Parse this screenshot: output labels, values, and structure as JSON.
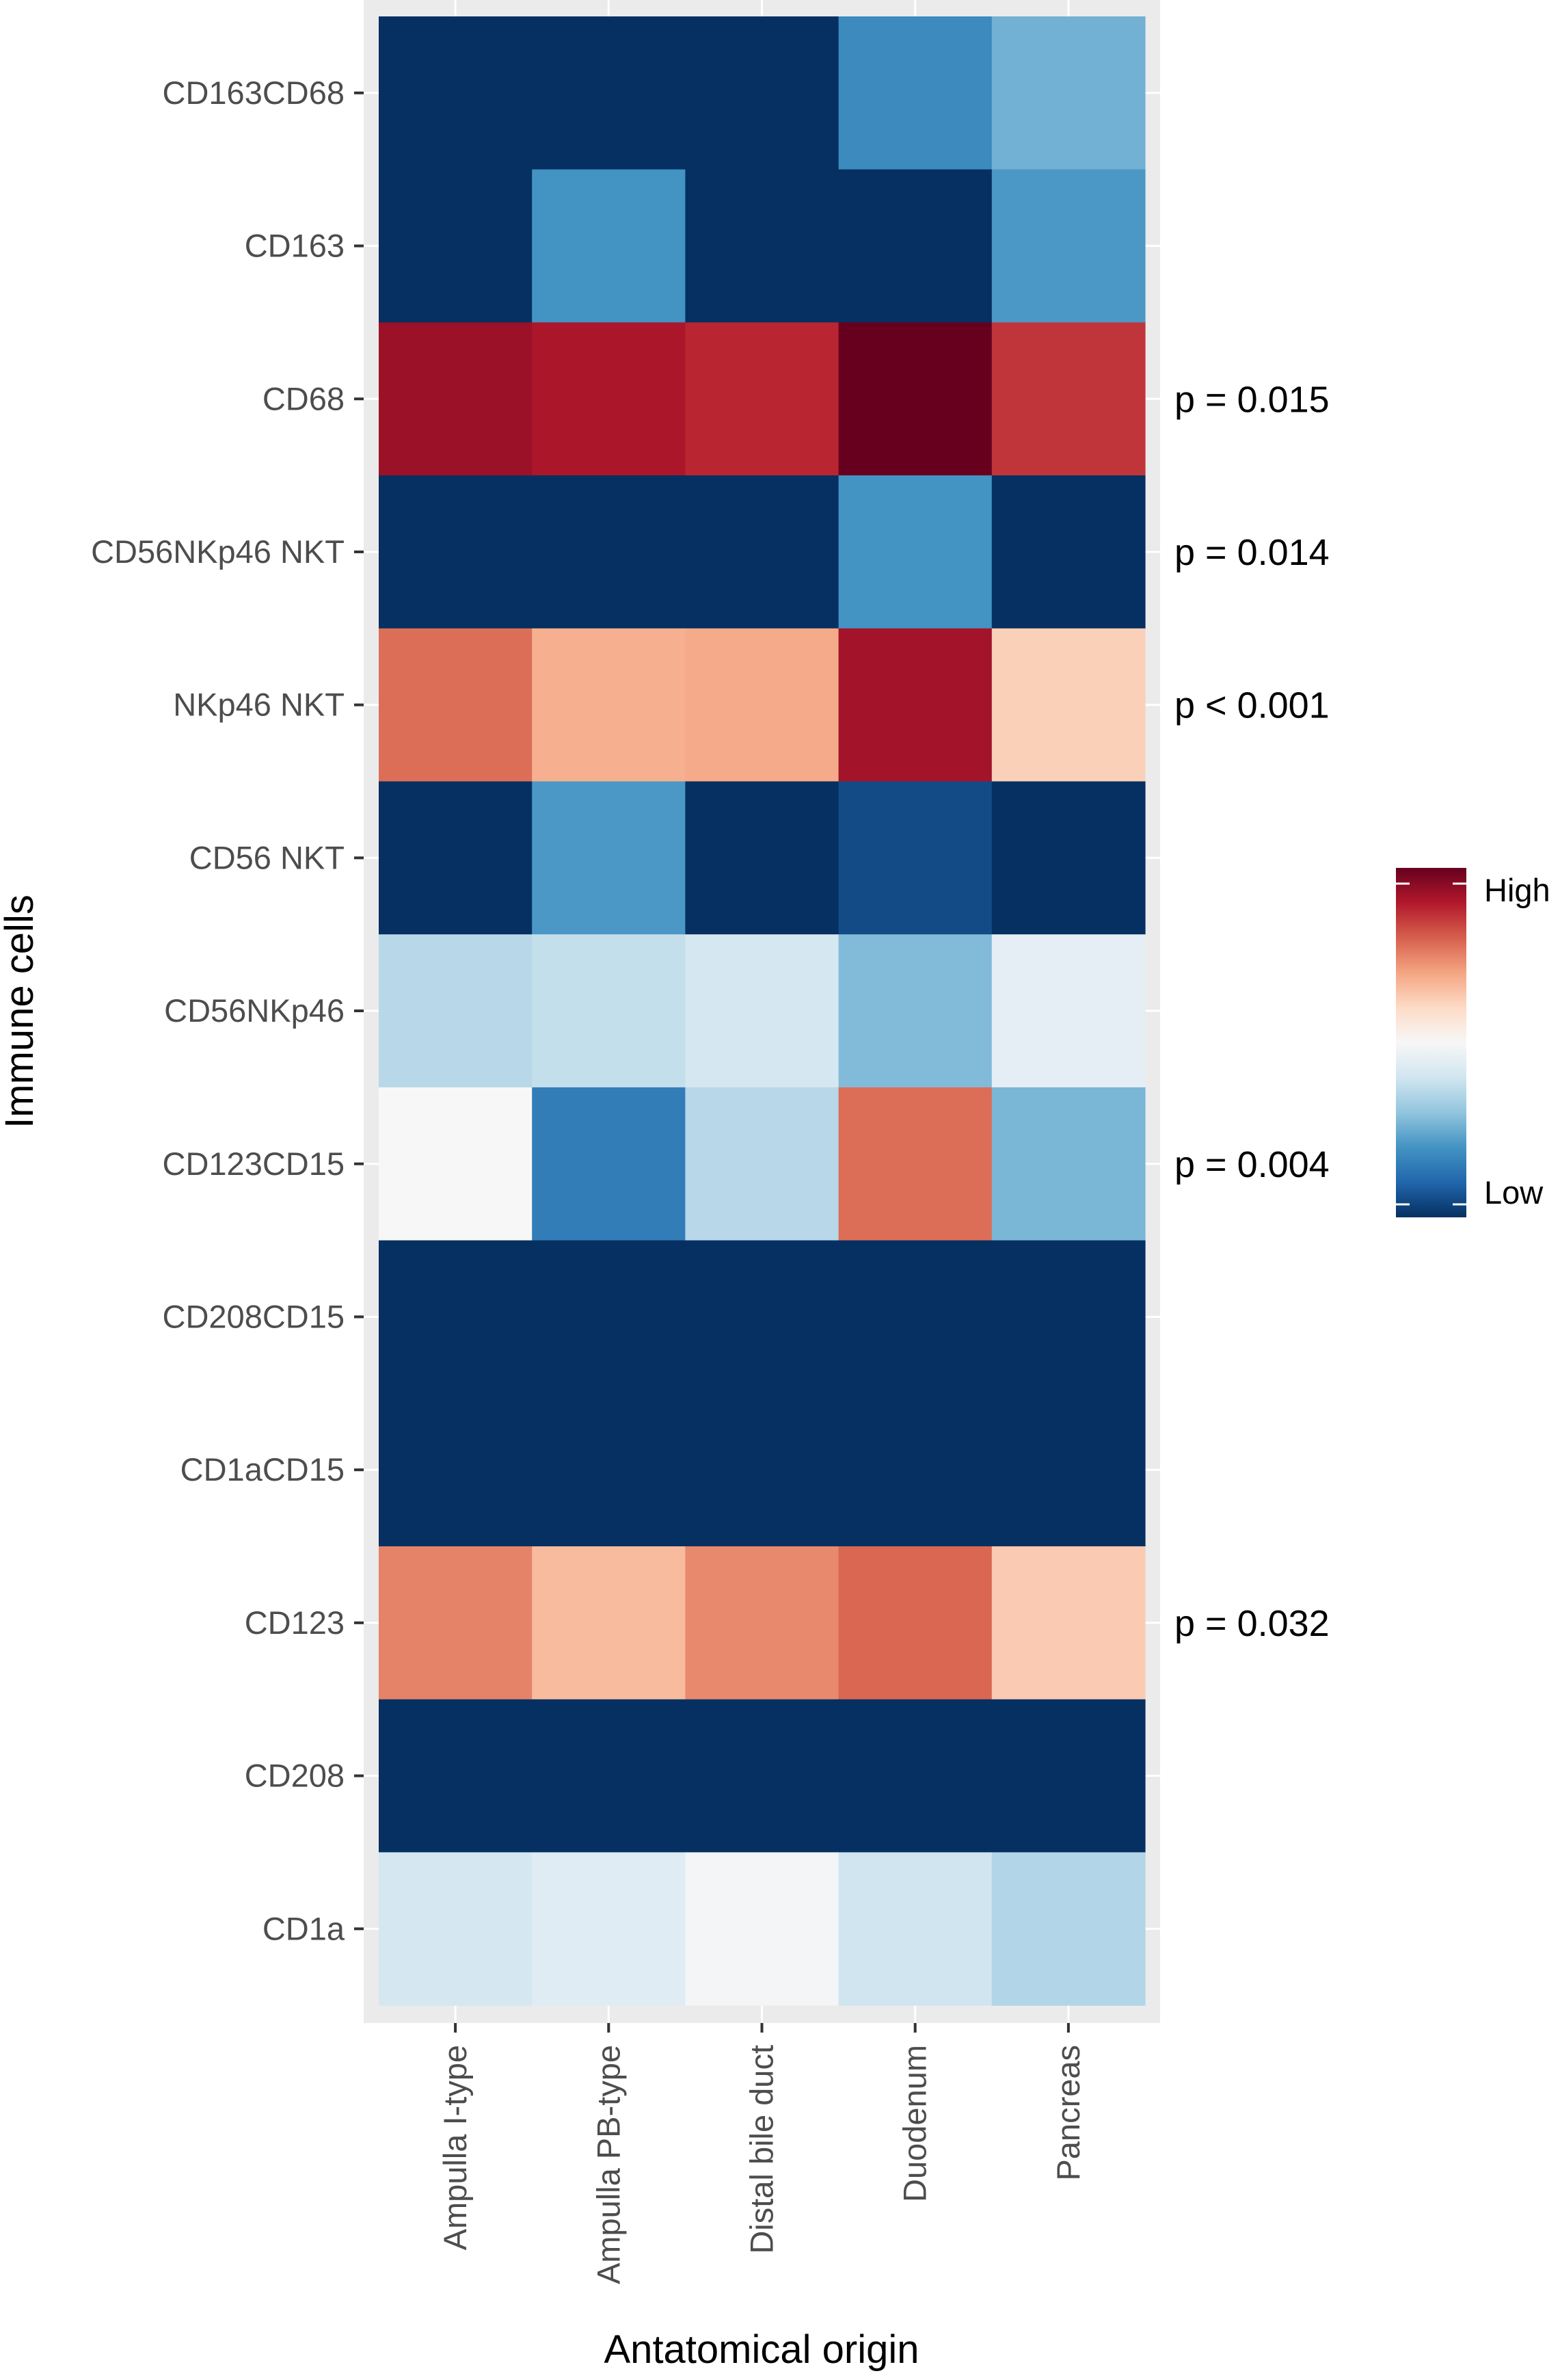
{
  "chart_data": {
    "type": "heatmap",
    "xlabel": "Antatomical origin",
    "ylabel": "Immune cells",
    "x_categories": [
      "Ampulla I-type",
      "Ampulla PB-type",
      "Distal bile duct",
      "Duodenum",
      "Pancreas"
    ],
    "y_categories": [
      "CD163CD68",
      "CD163",
      "CD68",
      "CD56NKp46 NKT",
      "NKp46 NKT",
      "CD56 NKT",
      "CD56NKp46",
      "CD123CD15",
      "CD208CD15",
      "CD1aCD15",
      "CD123",
      "CD208",
      "CD1a"
    ],
    "values": [
      [
        0.0,
        0.0,
        0.0,
        0.18,
        0.26
      ],
      [
        0.0,
        0.2,
        0.0,
        0.0,
        0.21
      ],
      [
        0.93,
        0.91,
        0.88,
        1.0,
        0.86
      ],
      [
        0.0,
        0.0,
        0.0,
        0.2,
        0.0
      ],
      [
        0.78,
        0.68,
        0.69,
        0.92,
        0.62
      ],
      [
        0.0,
        0.21,
        0.0,
        0.05,
        0.0
      ],
      [
        0.36,
        0.38,
        0.41,
        0.28,
        0.45
      ],
      [
        0.5,
        0.15,
        0.36,
        0.78,
        0.27
      ],
      [
        0.0,
        0.0,
        0.0,
        0.0,
        0.0
      ],
      [
        0.0,
        0.0,
        0.0,
        0.0,
        0.0
      ],
      [
        0.75,
        0.66,
        0.74,
        0.79,
        0.63
      ],
      [
        0.0,
        0.0,
        0.0,
        0.0,
        0.0
      ],
      [
        0.41,
        0.44,
        0.49,
        0.4,
        0.35
      ]
    ],
    "annotations": [
      {
        "row": "CD68",
        "text": "p = 0.015"
      },
      {
        "row": "CD56NKp46 NKT",
        "text": "p = 0.014"
      },
      {
        "row": "NKp46 NKT",
        "text": "p < 0.001"
      },
      {
        "row": "CD123CD15",
        "text": "p = 0.004"
      },
      {
        "row": "CD123",
        "text": "p = 0.032"
      }
    ],
    "legend": {
      "high_label": "High",
      "low_label": "Low",
      "position": "right"
    },
    "colorscale": [
      "#053061",
      "#2166ac",
      "#4393c3",
      "#92c5de",
      "#d1e5f0",
      "#f7f7f7",
      "#fddbc7",
      "#f4a582",
      "#d6604d",
      "#b2182b",
      "#67001f"
    ],
    "panel_background": "#ebebeb"
  }
}
